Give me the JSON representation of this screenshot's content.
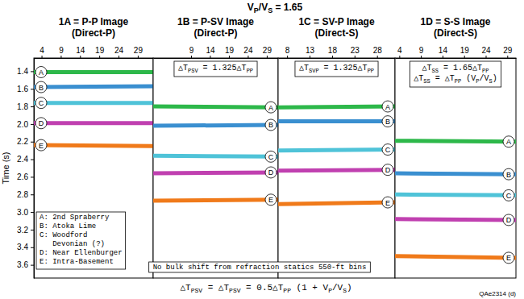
{
  "header": "VP/VS = 1.65",
  "formula": "△TPSV = △TPSV = 0.5△TPP (1 + VP/VS)",
  "code": "QAe2314 (d)",
  "legend_box": [
    "A: 2nd Spraberry",
    "B: Atoka Lime",
    "C: Woodford",
    "   Devonian (?)",
    "D: Near Ellenburger",
    "E: Intra-Basement"
  ],
  "note": "No bulk shift from refraction statics 550-ft bins",
  "chart_data": [
    {
      "type": "line",
      "title": "1A = P-P Image",
      "subtitle": "(Direct-P)",
      "y_label": "Time (s)",
      "x": [
        2,
        33
      ],
      "xlim": [
        2,
        33
      ],
      "xticks": [
        4,
        9,
        14,
        19,
        24,
        29
      ],
      "ylim": [
        1.25,
        3.75
      ],
      "yticks": [
        1.4,
        1.6,
        1.8,
        {
          "value": 2,
          "label": "2.0"
        },
        2.2,
        2.4,
        2.6,
        2.8,
        {
          "value": 3,
          "label": "3.0"
        },
        3.2,
        3.4,
        3.6
      ],
      "annotations": [],
      "series": [
        {
          "name": "A",
          "color": "#2db84a",
          "values": [
            1.41,
            1.41
          ]
        },
        {
          "name": "B",
          "color": "#3a8fd0",
          "values": [
            1.58,
            1.57
          ]
        },
        {
          "name": "C",
          "color": "#4fc3d8",
          "values": [
            1.76,
            1.76
          ]
        },
        {
          "name": "D",
          "color": "#c040b0",
          "values": [
            1.99,
            1.99
          ]
        },
        {
          "name": "E",
          "color": "#f07a1a",
          "values": [
            2.24,
            2.25
          ]
        }
      ]
    },
    {
      "type": "line",
      "title": "1B = P-SV Image",
      "subtitle": "(Direct-P)",
      "x": [
        -1,
        32
      ],
      "xlim": [
        -1,
        32
      ],
      "xticks": [
        9,
        14,
        19,
        24,
        29
      ],
      "ylim": [
        1.25,
        3.75
      ],
      "tick_labels": "x",
      "annotations": [
        "△TPSV = 1.325△TPP"
      ],
      "series": [
        {
          "name": "A",
          "color": "#2db84a",
          "values": [
            1.8,
            1.81
          ]
        },
        {
          "name": "B",
          "color": "#3a8fd0",
          "values": [
            2.02,
            2.01
          ]
        },
        {
          "name": "C",
          "color": "#4fc3d8",
          "values": [
            2.36,
            2.37
          ]
        },
        {
          "name": "D",
          "color": "#c040b0",
          "values": [
            2.56,
            2.55
          ]
        },
        {
          "name": "E",
          "color": "#f07a1a",
          "values": [
            2.87,
            2.86
          ]
        }
      ]
    },
    {
      "type": "line",
      "title": "1C = SV-P Image",
      "subtitle": "(Direct-S)",
      "x": [
        6,
        32
      ],
      "xlim": [
        6,
        32
      ],
      "xticks": [
        8,
        13,
        18,
        23,
        28
      ],
      "ylim": [
        1.25,
        3.75
      ],
      "tick_labels": "x",
      "annotations": [
        "△TSVP = 1.325△TPP"
      ],
      "series": [
        {
          "name": "A",
          "color": "#2db84a",
          "values": [
            1.81,
            1.8
          ]
        },
        {
          "name": "B",
          "color": "#3a8fd0",
          "values": [
            1.97,
            1.97
          ]
        },
        {
          "name": "C",
          "color": "#4fc3d8",
          "values": [
            2.3,
            2.29
          ]
        },
        {
          "name": "D",
          "color": "#c040b0",
          "values": [
            2.53,
            2.52
          ]
        },
        {
          "name": "E",
          "color": "#f07a1a",
          "values": [
            2.91,
            2.89
          ]
        }
      ]
    },
    {
      "type": "line",
      "title": "1D = S-S Image",
      "subtitle": "(Direct-S)",
      "x": [
        3,
        31
      ],
      "xlim": [
        3,
        31
      ],
      "xticks": [
        4,
        9,
        14,
        19,
        24,
        29
      ],
      "ylim": [
        1.25,
        3.75
      ],
      "tick_labels": "x",
      "annotations": [
        "△TSS = 1.65△TPP",
        "△TSS = △TPP (VP/VS)"
      ],
      "series": [
        {
          "name": "A",
          "color": "#2db84a",
          "values": [
            2.19,
            2.2
          ]
        },
        {
          "name": "B",
          "color": "#3a8fd0",
          "values": [
            2.56,
            2.57
          ]
        },
        {
          "name": "C",
          "color": "#4fc3d8",
          "values": [
            2.8,
            2.81
          ]
        },
        {
          "name": "D",
          "color": "#c040b0",
          "values": [
            3.08,
            3.09
          ]
        },
        {
          "name": "E",
          "color": "#f07a1a",
          "values": [
            3.5,
            3.52
          ]
        }
      ]
    }
  ]
}
